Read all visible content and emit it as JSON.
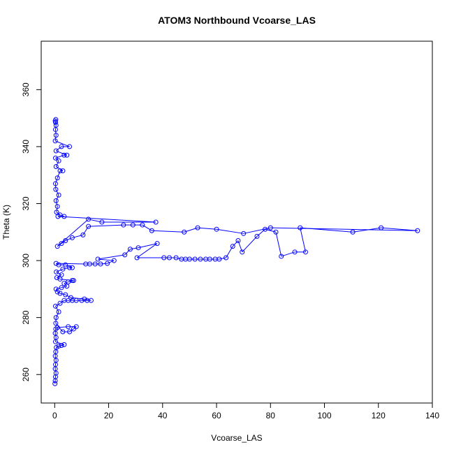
{
  "chart_data": {
    "type": "scatter",
    "title": "ATOM3 Northbound Vcoarse_LAS",
    "xlabel": "Vcoarse_LAS",
    "ylabel": "Theta (K)",
    "xlim": [
      -5,
      140
    ],
    "ylim": [
      250,
      377
    ],
    "xticks": [
      0,
      20,
      40,
      60,
      80,
      100,
      120,
      140
    ],
    "yticks": [
      260,
      280,
      300,
      320,
      340,
      360
    ],
    "grid": false,
    "legend": "none",
    "series": [
      {
        "style": "line-and-open-circles",
        "points": [
          [
            0.1,
            256.8
          ],
          [
            0.2,
            257.8
          ],
          [
            0.3,
            259.2
          ],
          [
            0.5,
            260.5
          ],
          [
            0.2,
            262.0
          ],
          [
            0.3,
            263.5
          ],
          [
            0.5,
            265.0
          ],
          [
            0.2,
            266.5
          ],
          [
            0.4,
            268.0
          ],
          [
            0.6,
            269.5
          ],
          [
            1.5,
            270.0
          ],
          [
            2.5,
            270.2
          ],
          [
            3.5,
            270.5
          ],
          [
            0.3,
            271.5
          ],
          [
            0.5,
            273.0
          ],
          [
            0.2,
            274.5
          ],
          [
            0.4,
            276.0
          ],
          [
            1.0,
            276.5
          ],
          [
            5.0,
            276.8
          ],
          [
            8.0,
            276.8
          ],
          [
            7.0,
            276.0
          ],
          [
            5.5,
            275.0
          ],
          [
            3.0,
            275.0
          ],
          [
            0.4,
            278.0
          ],
          [
            0.5,
            280.0
          ],
          [
            1.5,
            282.0
          ],
          [
            0.3,
            284.0
          ],
          [
            2.0,
            285.0
          ],
          [
            3.5,
            286.0
          ],
          [
            5.0,
            286.0
          ],
          [
            6.5,
            286.0
          ],
          [
            8.0,
            286.0
          ],
          [
            10.0,
            286.0
          ],
          [
            12.0,
            286.0
          ],
          [
            13.5,
            286.0
          ],
          [
            11.0,
            286.5
          ],
          [
            6.0,
            287.0
          ],
          [
            4.0,
            288.0
          ],
          [
            2.0,
            288.5
          ],
          [
            1.0,
            289.0
          ],
          [
            0.5,
            290.0
          ],
          [
            2.5,
            290.5
          ],
          [
            4.5,
            291.0
          ],
          [
            3.5,
            292.0
          ],
          [
            5.0,
            292.5
          ],
          [
            7.0,
            293.0
          ],
          [
            6.5,
            293.0
          ],
          [
            2.0,
            293.5
          ],
          [
            0.8,
            294.0
          ],
          [
            2.5,
            295.0
          ],
          [
            0.6,
            296.0
          ],
          [
            3.0,
            297.0
          ],
          [
            5.5,
            297.5
          ],
          [
            6.5,
            297.5
          ],
          [
            4.0,
            298.5
          ],
          [
            1.5,
            298.5
          ],
          [
            0.5,
            299.0
          ],
          [
            11.5,
            298.8
          ],
          [
            13.0,
            298.8
          ],
          [
            15.0,
            298.8
          ],
          [
            17.0,
            298.8
          ],
          [
            19.5,
            299.0
          ],
          [
            22.0,
            300.0
          ],
          [
            16.0,
            300.5
          ],
          [
            26.0,
            302.0
          ],
          [
            28.0,
            304.0
          ],
          [
            31.0,
            304.5
          ],
          [
            38.0,
            306.0
          ],
          [
            30.5,
            301.0
          ],
          [
            40.5,
            301.0
          ],
          [
            42.5,
            301.0
          ],
          [
            45.0,
            301.0
          ],
          [
            47.0,
            300.5
          ],
          [
            48.5,
            300.5
          ],
          [
            50.0,
            300.5
          ],
          [
            52.0,
            300.5
          ],
          [
            54.0,
            300.5
          ],
          [
            56.0,
            300.5
          ],
          [
            57.5,
            300.5
          ],
          [
            59.5,
            300.5
          ],
          [
            61.0,
            300.5
          ],
          [
            63.5,
            301.0
          ],
          [
            66.0,
            305.0
          ],
          [
            68.0,
            307.0
          ],
          [
            69.5,
            303.0
          ],
          [
            75.0,
            308.5
          ],
          [
            78.0,
            311.0
          ],
          [
            82.0,
            310.0
          ],
          [
            84.0,
            301.5
          ],
          [
            89.0,
            303.0
          ],
          [
            93.0,
            303.0
          ],
          [
            91.0,
            311.5
          ],
          [
            110.5,
            310.0
          ],
          [
            121.0,
            311.5
          ],
          [
            134.5,
            310.5
          ],
          [
            80.0,
            311.5
          ],
          [
            70.0,
            309.5
          ],
          [
            60.0,
            311.0
          ],
          [
            53.0,
            311.5
          ],
          [
            48.0,
            310.0
          ],
          [
            36.0,
            310.5
          ],
          [
            32.5,
            312.5
          ],
          [
            29.0,
            312.5
          ],
          [
            25.5,
            312.5
          ],
          [
            12.5,
            312.0
          ],
          [
            10.5,
            309.0
          ],
          [
            6.5,
            308.0
          ],
          [
            4.0,
            307.0
          ],
          [
            2.5,
            306.0
          ],
          [
            1.0,
            305.0
          ],
          [
            12.5,
            314.5
          ],
          [
            17.5,
            313.5
          ],
          [
            37.5,
            313.5
          ],
          [
            1.2,
            315.5
          ],
          [
            3.5,
            315.5
          ],
          [
            2.0,
            316.0
          ],
          [
            0.7,
            317.0
          ],
          [
            1.0,
            319.0
          ],
          [
            0.5,
            321.0
          ],
          [
            1.5,
            323.0
          ],
          [
            0.4,
            325.0
          ],
          [
            0.3,
            327.0
          ],
          [
            1.0,
            329.0
          ],
          [
            2.0,
            331.5
          ],
          [
            3.0,
            331.5
          ],
          [
            0.5,
            333.0
          ],
          [
            1.5,
            335.0
          ],
          [
            0.3,
            336.0
          ],
          [
            3.5,
            337.0
          ],
          [
            4.5,
            337.0
          ],
          [
            0.5,
            338.5
          ],
          [
            2.5,
            340.0
          ],
          [
            5.5,
            340.0
          ],
          [
            0.2,
            342.0
          ],
          [
            0.5,
            344.0
          ],
          [
            0.3,
            346.0
          ],
          [
            0.5,
            347.5
          ],
          [
            0.3,
            348.5
          ],
          [
            0.2,
            349.0
          ],
          [
            0.4,
            349.5
          ]
        ]
      }
    ]
  },
  "colors": {
    "series": "#0000ff",
    "axis": "#000000",
    "background": "#ffffff"
  }
}
